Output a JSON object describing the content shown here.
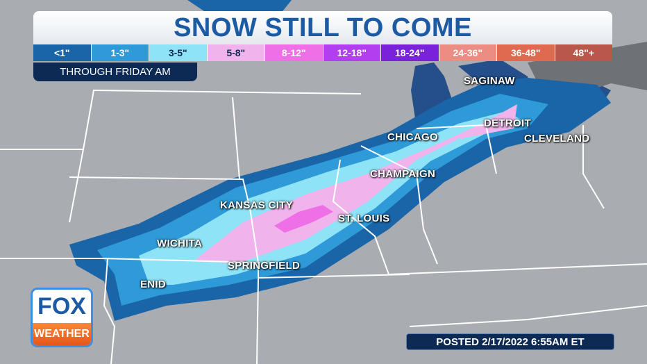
{
  "header": {
    "title": "SNOW STILL TO COME",
    "subtitle": "THROUGH FRIDAY AM"
  },
  "legend": [
    {
      "label": "<1\"",
      "color": "#1a64a8",
      "text": "#ffffff"
    },
    {
      "label": "1-3\"",
      "color": "#2f9ad8",
      "text": "#ffffff"
    },
    {
      "label": "3-5\"",
      "color": "#8fe3f6",
      "text": "#0d2a55"
    },
    {
      "label": "5-8\"",
      "color": "#f1b3ec",
      "text": "#0d2a55"
    },
    {
      "label": "8-12\"",
      "color": "#ef6fe6",
      "text": "#ffffff"
    },
    {
      "label": "12-18\"",
      "color": "#b23ef0",
      "text": "#ffffff"
    },
    {
      "label": "18-24\"",
      "color": "#7a22d8",
      "text": "#ffffff"
    },
    {
      "label": "24-36\"",
      "color": "#ec8d83",
      "text": "#ffffff"
    },
    {
      "label": "36-48\"",
      "color": "#df6a50",
      "text": "#ffffff"
    },
    {
      "label": "48\"+",
      "color": "#b9574a",
      "text": "#ffffff"
    }
  ],
  "cities": [
    "SAGINAW",
    "DETROIT",
    "CLEVELAND",
    "CHICAGO",
    "CHAMPAIGN",
    "KANSAS CITY",
    "ST. LOUIS",
    "WICHITA",
    "SPRINGFIELD",
    "ENID"
  ],
  "logo": {
    "top": "FOX",
    "bottom": "WEATHER"
  },
  "posted": "POSTED 2/17/2022 6:55AM ET",
  "colors": {
    "land": "#a9acb0",
    "water": "#244f8a",
    "border": "#ffffff"
  }
}
